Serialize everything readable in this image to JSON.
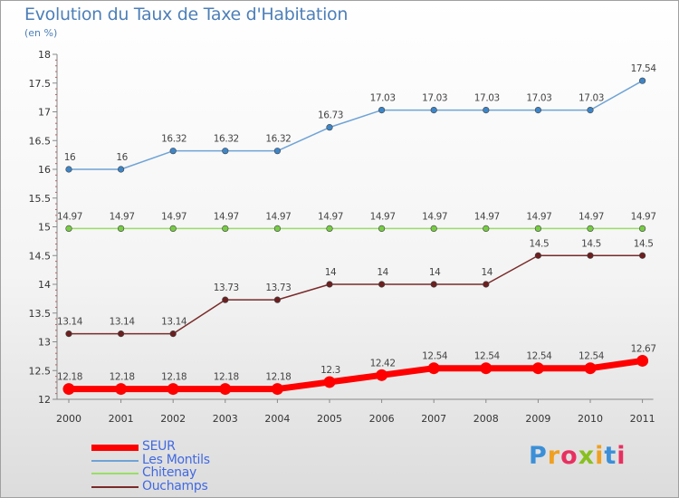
{
  "title": "Evolution du Taux de Taxe d'Habitation",
  "subtitle": "(en %)",
  "logo": "Proxiti",
  "colors": {
    "title": "#4d7fb8",
    "legend_text": "#4169e1"
  },
  "chart_data": {
    "type": "line",
    "title": "Evolution du Taux de Taxe d'Habitation",
    "ylabel": "(en %)",
    "xlabel": "",
    "ylim": [
      12,
      18
    ],
    "yticks": [
      "12",
      "12.5",
      "13",
      "13.5",
      "14",
      "14.5",
      "15",
      "15.5",
      "16",
      "16.5",
      "17",
      "17.5",
      "18"
    ],
    "categories": [
      "2000",
      "2001",
      "2002",
      "2003",
      "2004",
      "2005",
      "2006",
      "2007",
      "2008",
      "2009",
      "2010",
      "2011"
    ],
    "grid": false,
    "legend_position": "bottom-left",
    "series": [
      {
        "name": "Les Montils",
        "color": "#6fa3d6",
        "marker_color": "#3d85c6",
        "values": [
          16,
          16,
          16.32,
          16.32,
          16.32,
          16.73,
          17.03,
          17.03,
          17.03,
          17.03,
          17.03,
          17.54
        ],
        "labels": [
          "16",
          "16",
          "16.32",
          "16.32",
          "16.32",
          "16.73",
          "17.03",
          "17.03",
          "17.03",
          "17.03",
          "17.03",
          "17.54"
        ]
      },
      {
        "name": "Chitenay",
        "color": "#99dd66",
        "marker_color": "#77cc44",
        "values": [
          14.97,
          14.97,
          14.97,
          14.97,
          14.97,
          14.97,
          14.97,
          14.97,
          14.97,
          14.97,
          14.97,
          14.97
        ],
        "labels": [
          "14.97",
          "14.97",
          "14.97",
          "14.97",
          "14.97",
          "14.97",
          "14.97",
          "14.97",
          "14.97",
          "14.97",
          "14.97",
          "14.97"
        ]
      },
      {
        "name": "Ouchamps",
        "color": "#7a2a2a",
        "marker_color": "#6b1f1f",
        "values": [
          13.14,
          13.14,
          13.14,
          13.73,
          13.73,
          14,
          14,
          14,
          14,
          14.5,
          14.5,
          14.5
        ],
        "labels": [
          "13.14",
          "13.14",
          "13.14",
          "13.73",
          "13.73",
          "14",
          "14",
          "14",
          "14",
          "14.5",
          "14.5",
          "14.5"
        ]
      },
      {
        "name": "SEUR",
        "color": "#ff0000",
        "marker_color": "#ff0000",
        "bold": true,
        "values": [
          12.18,
          12.18,
          12.18,
          12.18,
          12.18,
          12.3,
          12.42,
          12.54,
          12.54,
          12.54,
          12.54,
          12.67
        ],
        "labels": [
          "12.18",
          "12.18",
          "12.18",
          "12.18",
          "12.18",
          "12.3",
          "12.42",
          "12.54",
          "12.54",
          "12.54",
          "12.54",
          "12.67"
        ]
      }
    ]
  },
  "legend": [
    {
      "label": "SEUR",
      "color": "#ff0000",
      "bold": true
    },
    {
      "label": "Les Montils",
      "color": "#6fa3d6",
      "bold": false
    },
    {
      "label": "Chitenay",
      "color": "#99dd66",
      "bold": false
    },
    {
      "label": "Ouchamps",
      "color": "#7a2a2a",
      "bold": false
    }
  ]
}
